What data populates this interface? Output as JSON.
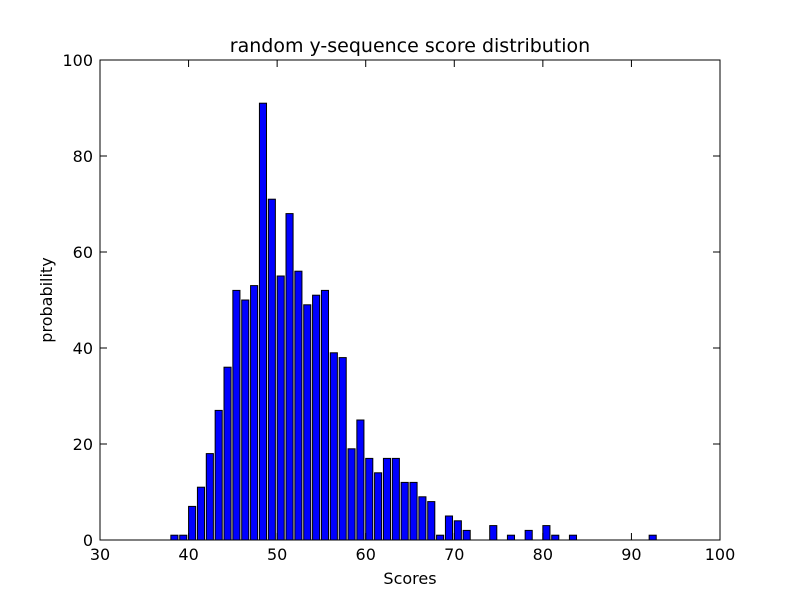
{
  "chart_data": {
    "type": "bar",
    "title": "random y-sequence score distribution",
    "xlabel": "Scores",
    "ylabel": "probability",
    "xlim": [
      30,
      100
    ],
    "ylim": [
      0,
      100
    ],
    "x_ticks": [
      30,
      40,
      50,
      60,
      70,
      80,
      90,
      100
    ],
    "y_ticks": [
      0,
      20,
      40,
      60,
      80,
      100
    ],
    "grid": false,
    "bar_color": "#0000ff",
    "edge_color": "#000000",
    "bar_width": 0.8,
    "x": [
      38,
      39,
      40,
      41,
      42,
      43,
      44,
      45,
      46,
      47,
      48,
      49,
      50,
      51,
      52,
      53,
      54,
      55,
      56,
      57,
      58,
      59,
      60,
      61,
      62,
      63,
      64,
      65,
      66,
      67,
      68,
      69,
      70,
      71,
      74,
      76,
      78,
      80,
      81,
      83,
      92
    ],
    "values": [
      1,
      1,
      7,
      11,
      18,
      27,
      36,
      52,
      50,
      53,
      91,
      71,
      55,
      68,
      56,
      49,
      51,
      52,
      39,
      38,
      19,
      25,
      17,
      14,
      17,
      17,
      12,
      12,
      9,
      8,
      1,
      5,
      4,
      2,
      3,
      1,
      2,
      3,
      1,
      1,
      1
    ]
  }
}
